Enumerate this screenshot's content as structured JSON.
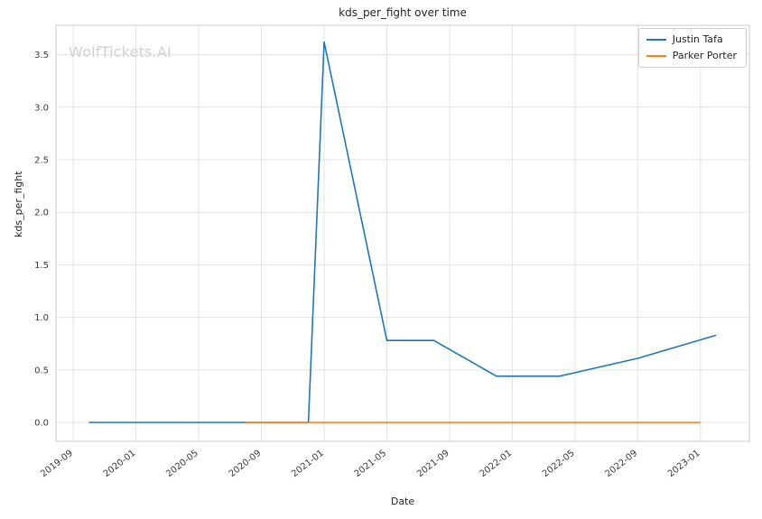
{
  "figure": {
    "watermark": "WolfTickets.AI"
  },
  "chart_data": {
    "type": "line",
    "title": "kds_per_fight over time",
    "xlabel": "Date",
    "ylabel": "kds_per_fight",
    "x_tick_labels": [
      "2019-09",
      "2020-01",
      "2020-05",
      "2020-09",
      "2021-01",
      "2021-05",
      "2021-09",
      "2022-01",
      "2022-05",
      "2022-09",
      "2023-01"
    ],
    "y_tick_values": [
      0.0,
      0.5,
      1.0,
      1.5,
      2.0,
      2.5,
      3.0,
      3.5
    ],
    "xlim_years": [
      2019.575,
      2023.26
    ],
    "ylim": [
      -0.18,
      3.78
    ],
    "grid": true,
    "legend_position": "upper right",
    "series": [
      {
        "name": "Justin Tafa",
        "color": "#1f77b4",
        "points": [
          [
            "2019-10",
            0.0
          ],
          [
            "2020-02",
            0.0
          ],
          [
            "2020-07",
            0.0
          ],
          [
            "2020-12",
            0.0
          ],
          [
            "2021-01",
            3.62
          ],
          [
            "2021-05",
            0.78
          ],
          [
            "2021-08",
            0.78
          ],
          [
            "2021-12",
            0.44
          ],
          [
            "2022-04",
            0.44
          ],
          [
            "2022-09",
            0.61
          ],
          [
            "2023-02",
            0.83
          ]
        ]
      },
      {
        "name": "Parker Porter",
        "color": "#ff7f0e",
        "points": [
          [
            "2020-08",
            0.0
          ],
          [
            "2021-01",
            0.0
          ],
          [
            "2021-06",
            0.0
          ],
          [
            "2022-01",
            0.0
          ],
          [
            "2022-07",
            0.0
          ],
          [
            "2023-01",
            0.0
          ]
        ]
      }
    ]
  }
}
